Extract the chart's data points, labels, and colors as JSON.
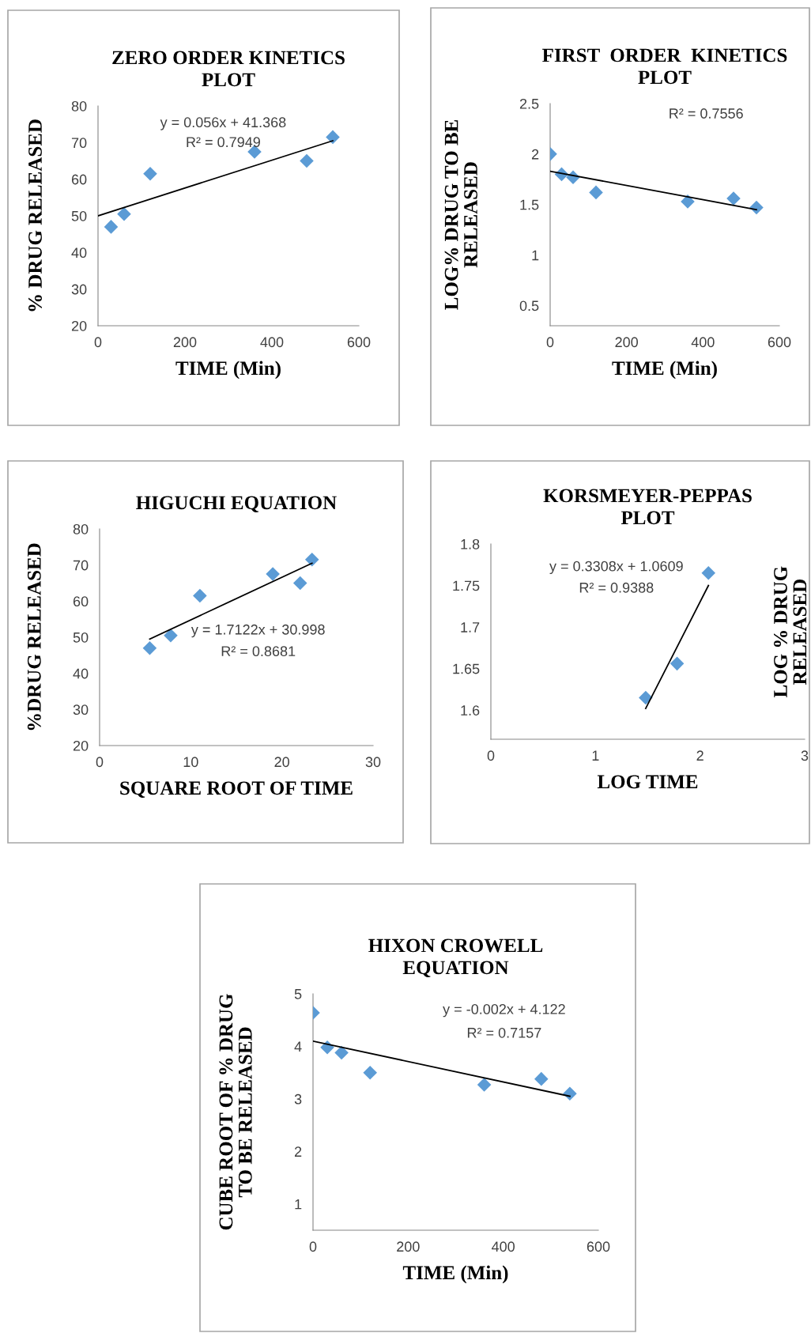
{
  "chart_data": [
    {
      "type": "scatter",
      "title": "ZERO ORDER KINETICS PLOT",
      "xlabel": "TIME (Min)",
      "ylabel": "% DRUG RELEASED",
      "xlim": [
        0,
        600
      ],
      "ylim": [
        20,
        80
      ],
      "xticks": [
        0,
        200,
        400,
        600
      ],
      "yticks": [
        20,
        30,
        40,
        50,
        60,
        70,
        80
      ],
      "grid": false,
      "annotations": [
        "y = 0.056x + 41.368",
        "R² = 0.7949"
      ],
      "series": [
        {
          "marker": "diamond",
          "color": "#5b9bd5",
          "x": [
            30,
            60,
            120,
            360,
            480,
            540
          ],
          "values": [
            47,
            50.5,
            61.5,
            67.5,
            65,
            71.5
          ]
        },
        {
          "type": "line",
          "marker": "none",
          "color": "#000000",
          "x": [
            0,
            540
          ],
          "values": [
            50,
            70.5
          ]
        }
      ]
    },
    {
      "type": "scatter",
      "title": "FIRST  ORDER  KINETICS PLOT",
      "xlabel": "TIME (Min)",
      "ylabel": "LOG% DRUG TO BE RELEASED",
      "xlim": [
        0,
        600
      ],
      "ylim": [
        0.3,
        2.5
      ],
      "xticks": [
        0,
        200,
        400,
        600
      ],
      "yticks": [
        0.5,
        1,
        1.5,
        2,
        2.5
      ],
      "grid": false,
      "annotations": [
        "R² = 0.7556"
      ],
      "series": [
        {
          "marker": "diamond",
          "color": "#5b9bd5",
          "x": [
            0,
            30,
            60,
            120,
            360,
            480,
            540
          ],
          "values": [
            2.0,
            1.8,
            1.77,
            1.62,
            1.53,
            1.56,
            1.47
          ]
        },
        {
          "type": "line",
          "marker": "none",
          "color": "#000000",
          "x": [
            0,
            540
          ],
          "values": [
            1.83,
            1.45
          ]
        }
      ]
    },
    {
      "type": "scatter",
      "title": "HIGUCHI EQUATION",
      "xlabel": "SQUARE ROOT OF TIME",
      "ylabel": "%DRUG RELEASED",
      "xlim": [
        0,
        30
      ],
      "ylim": [
        20,
        80
      ],
      "xticks": [
        0,
        10,
        20,
        30
      ],
      "yticks": [
        20,
        30,
        40,
        50,
        60,
        70,
        80
      ],
      "grid": false,
      "annotations": [
        "y = 1.7122x + 30.998",
        "R² = 0.8681"
      ],
      "series": [
        {
          "marker": "diamond",
          "color": "#5b9bd5",
          "x": [
            5.5,
            7.8,
            11,
            19,
            22,
            23.3
          ],
          "values": [
            47,
            50.5,
            61.5,
            67.5,
            65,
            71.5
          ]
        },
        {
          "type": "line",
          "marker": "none",
          "color": "#000000",
          "x": [
            5.5,
            23.3
          ],
          "values": [
            49.5,
            70.5
          ]
        }
      ]
    },
    {
      "type": "scatter",
      "title": "KORSMEYER-PEPPAS PLOT",
      "xlabel": "LOG TIME",
      "ylabel": "LOG % DRUG RELEASED",
      "xlim": [
        0,
        3
      ],
      "ylim": [
        1.565,
        1.8
      ],
      "xticks": [
        0,
        1,
        2,
        3
      ],
      "yticks": [
        1.6,
        1.65,
        1.7,
        1.75,
        1.8
      ],
      "grid": false,
      "annotations": [
        "y = 0.3308x + 1.0609",
        "R² = 0.9388"
      ],
      "series": [
        {
          "marker": "diamond",
          "color": "#5b9bd5",
          "x": [
            1.48,
            1.78,
            2.08
          ],
          "values": [
            1.615,
            1.656,
            1.765
          ]
        },
        {
          "type": "line",
          "marker": "none",
          "color": "#000000",
          "x": [
            1.48,
            2.08
          ],
          "values": [
            1.602,
            1.75
          ]
        }
      ]
    },
    {
      "type": "scatter",
      "title": "HIXON CROWELL EQUATION",
      "xlabel": "TIME (Min)",
      "ylabel": "CUBE ROOT OF % DRUG TO BE RELEASED",
      "xlim": [
        0,
        600
      ],
      "ylim": [
        0.5,
        5
      ],
      "xticks": [
        0,
        200,
        400,
        600
      ],
      "yticks": [
        1,
        2,
        3,
        4,
        5
      ],
      "grid": false,
      "annotations": [
        "y = -0.002x + 4.122",
        "R² = 0.7157"
      ],
      "series": [
        {
          "marker": "diamond",
          "color": "#5b9bd5",
          "x": [
            0,
            30,
            60,
            120,
            360,
            480,
            540
          ],
          "values": [
            4.64,
            3.98,
            3.88,
            3.5,
            3.27,
            3.38,
            3.1
          ]
        },
        {
          "type": "line",
          "marker": "none",
          "color": "#000000",
          "x": [
            0,
            540
          ],
          "values": [
            4.1,
            3.05
          ]
        }
      ]
    }
  ]
}
